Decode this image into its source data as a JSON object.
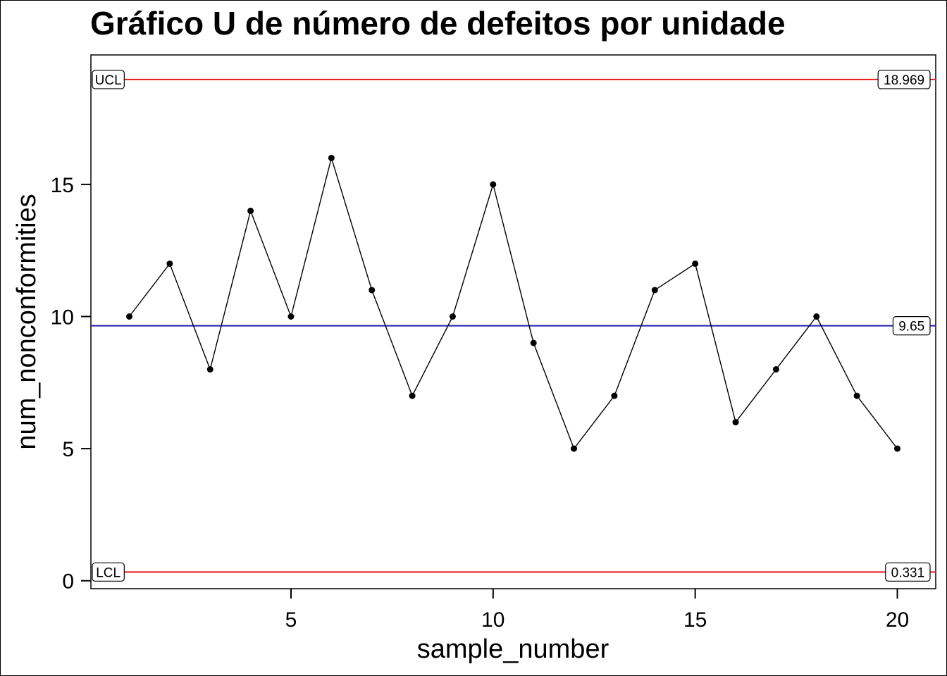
{
  "chart_data": {
    "type": "line",
    "title": "Gráfico U de número de defeitos por unidade",
    "xlabel": "sample_number",
    "ylabel": "num_nonconformities",
    "xlim": [
      0.05,
      20.95
    ],
    "ylim": [
      -0.3,
      19.9
    ],
    "xticks": [
      5,
      10,
      15,
      20
    ],
    "yticks": [
      0,
      5,
      10,
      15
    ],
    "x": [
      1,
      2,
      3,
      4,
      5,
      6,
      7,
      8,
      9,
      10,
      11,
      12,
      13,
      14,
      15,
      16,
      17,
      18,
      19,
      20
    ],
    "series": [
      {
        "values": [
          10,
          12,
          8,
          14,
          10,
          16,
          11,
          7,
          10,
          15,
          9,
          5,
          7,
          11,
          12,
          6,
          8,
          10,
          7,
          5
        ]
      }
    ],
    "control_limits": {
      "ucl": {
        "label": "UCL",
        "value": 18.969,
        "value_text": "18.969",
        "color": "#e8191f"
      },
      "center": {
        "value": 9.65,
        "value_text": "9.65",
        "color": "#1f1fb5"
      },
      "lcl": {
        "label": "LCL",
        "value": 0.331,
        "value_text": "0.331",
        "color": "#e8191f"
      }
    },
    "grid": false
  }
}
